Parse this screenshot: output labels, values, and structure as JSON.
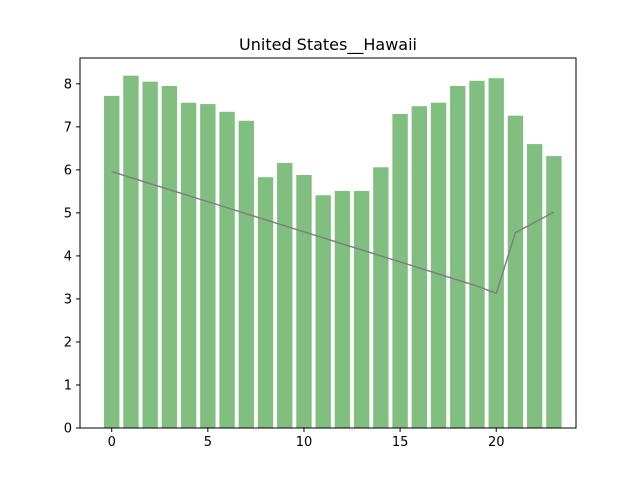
{
  "chart_data": {
    "type": "bar",
    "title": "United States__Hawaii",
    "xlabel": "",
    "ylabel": "",
    "x": [
      0,
      1,
      2,
      3,
      4,
      5,
      6,
      7,
      8,
      9,
      10,
      11,
      12,
      13,
      14,
      15,
      16,
      17,
      18,
      19,
      20,
      21,
      22,
      23
    ],
    "values": [
      7.72,
      8.19,
      8.05,
      7.95,
      7.56,
      7.53,
      7.35,
      7.14,
      5.83,
      6.16,
      5.88,
      5.41,
      5.51,
      5.51,
      6.06,
      7.3,
      7.48,
      7.56,
      7.95,
      8.07,
      8.13,
      7.26,
      6.6,
      6.32
    ],
    "line": {
      "x": [
        0,
        1,
        2,
        3,
        4,
        5,
        6,
        7,
        8,
        9,
        10,
        11,
        12,
        13,
        14,
        15,
        16,
        17,
        18,
        19,
        20,
        21,
        22,
        23
      ],
      "values": [
        5.96,
        5.82,
        5.68,
        5.54,
        5.4,
        5.26,
        5.12,
        4.98,
        4.84,
        4.7,
        4.56,
        4.42,
        4.28,
        4.14,
        4.0,
        3.86,
        3.72,
        3.58,
        3.44,
        3.3,
        3.13,
        4.54,
        4.78,
        5.02
      ]
    },
    "xlim": [
      -1.65,
      24.15
    ],
    "ylim": [
      0,
      8.6
    ],
    "xticks": [
      0,
      5,
      10,
      15,
      20
    ],
    "yticks": [
      0,
      1,
      2,
      3,
      4,
      5,
      6,
      7,
      8
    ],
    "grid": false,
    "colors": {
      "bar": "#80bf80",
      "line": "#808080",
      "axis": "#000000"
    }
  }
}
